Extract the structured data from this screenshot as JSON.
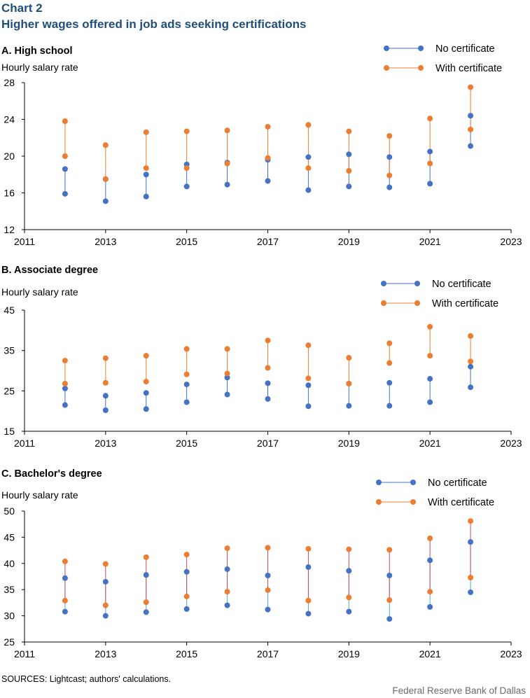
{
  "header": {
    "label": "Chart 2",
    "title": "Higher wages offered in job ads seeking certifications"
  },
  "colors": {
    "no_cert": "#4472c4",
    "with_cert": "#ed7d31",
    "axis": "#000000",
    "up_segment": "#c0504d",
    "down_segment": "#4bacc6"
  },
  "chart_data": [
    {
      "type": "dot-range",
      "panel": "A",
      "title": "A. High school",
      "ylabel": "Hourly  salary rate",
      "xlim": [
        2011,
        2023
      ],
      "xticks": [
        2011,
        2013,
        2015,
        2017,
        2019,
        2021,
        2023
      ],
      "ylim": [
        12,
        28
      ],
      "yticks": [
        12,
        16,
        20,
        24,
        28
      ],
      "legend": "top-right",
      "series": [
        {
          "name": "No certificate",
          "color": "#4472c4",
          "x": [
            2012,
            2013,
            2014,
            2015,
            2016,
            2017,
            2018,
            2019,
            2020,
            2021,
            2022
          ],
          "low": [
            15.9,
            15.1,
            15.6,
            16.7,
            16.9,
            17.3,
            16.3,
            16.7,
            16.6,
            17.0,
            21.1
          ],
          "high": [
            18.6,
            17.5,
            18.0,
            19.1,
            19.3,
            19.6,
            19.9,
            20.2,
            19.9,
            20.5,
            24.4
          ]
        },
        {
          "name": "With certificate",
          "color": "#ed7d31",
          "x": [
            2012,
            2013,
            2014,
            2015,
            2016,
            2017,
            2018,
            2019,
            2020,
            2021,
            2022
          ],
          "low": [
            20.0,
            17.5,
            18.7,
            18.7,
            19.2,
            19.8,
            18.7,
            18.4,
            17.9,
            19.2,
            22.9
          ],
          "high": [
            23.8,
            21.2,
            22.6,
            22.7,
            22.8,
            23.2,
            23.4,
            22.7,
            22.2,
            24.1,
            27.5
          ]
        }
      ]
    },
    {
      "type": "dot-range",
      "panel": "B",
      "title": "B. Associate degree",
      "ylabel": "Hourly  salary rate",
      "xlim": [
        2011,
        2023
      ],
      "xticks": [
        2011,
        2013,
        2015,
        2017,
        2019,
        2021,
        2023
      ],
      "ylim": [
        15,
        45
      ],
      "yticks": [
        15,
        25,
        35,
        45
      ],
      "legend": "top-right",
      "series": [
        {
          "name": "No certificate",
          "color": "#4472c4",
          "x": [
            2012,
            2013,
            2014,
            2015,
            2016,
            2017,
            2018,
            2019,
            2020,
            2021,
            2022
          ],
          "low": [
            21.5,
            20.2,
            20.5,
            22.2,
            24.1,
            23.0,
            21.2,
            21.3,
            21.3,
            22.2,
            25.9
          ],
          "high": [
            25.6,
            23.8,
            24.5,
            26.6,
            28.3,
            26.9,
            26.4,
            26.8,
            27.0,
            28.0,
            31.0
          ]
        },
        {
          "name": "With certificate",
          "color": "#ed7d31",
          "x": [
            2012,
            2013,
            2014,
            2015,
            2016,
            2017,
            2018,
            2019,
            2020,
            2021,
            2022
          ],
          "low": [
            26.8,
            27.0,
            27.3,
            29.1,
            29.3,
            30.7,
            28.1,
            26.8,
            31.9,
            33.7,
            32.3
          ],
          "high": [
            32.5,
            33.1,
            33.7,
            35.4,
            35.4,
            37.5,
            36.3,
            33.2,
            36.8,
            40.9,
            38.6
          ]
        }
      ]
    },
    {
      "type": "dot-range",
      "panel": "C",
      "title": "C. Bachelor's degree",
      "ylabel": "Hourly  salary rate",
      "xlim": [
        2011,
        2023
      ],
      "xticks": [
        2011,
        2013,
        2015,
        2017,
        2019,
        2021,
        2023
      ],
      "ylim": [
        25,
        50
      ],
      "yticks": [
        25,
        30,
        35,
        40,
        45,
        50
      ],
      "legend": "top-right",
      "series": [
        {
          "name": "No certificate",
          "color": "#4472c4",
          "x": [
            2012,
            2013,
            2014,
            2015,
            2016,
            2017,
            2018,
            2019,
            2020,
            2021,
            2022
          ],
          "low": [
            30.8,
            30.0,
            30.7,
            31.3,
            32.0,
            31.2,
            30.4,
            30.8,
            29.4,
            31.7,
            34.5
          ],
          "high": [
            37.2,
            36.5,
            37.8,
            38.4,
            38.9,
            37.7,
            39.3,
            38.6,
            37.7,
            40.6,
            44.1
          ]
        },
        {
          "name": "With certificate",
          "color": "#ed7d31",
          "x": [
            2012,
            2013,
            2014,
            2015,
            2016,
            2017,
            2018,
            2019,
            2020,
            2021,
            2022
          ],
          "low": [
            32.9,
            32.0,
            32.6,
            33.7,
            34.6,
            34.9,
            32.9,
            33.5,
            33.0,
            34.6,
            37.3
          ],
          "high": [
            40.4,
            39.9,
            41.2,
            41.7,
            42.9,
            43.0,
            42.8,
            42.7,
            42.6,
            44.8,
            48.1
          ]
        }
      ]
    }
  ],
  "footer": {
    "sources": "SOURCES: Lightcast; authors' calculations.",
    "credit": "Federal Reserve Bank of Dallas"
  }
}
